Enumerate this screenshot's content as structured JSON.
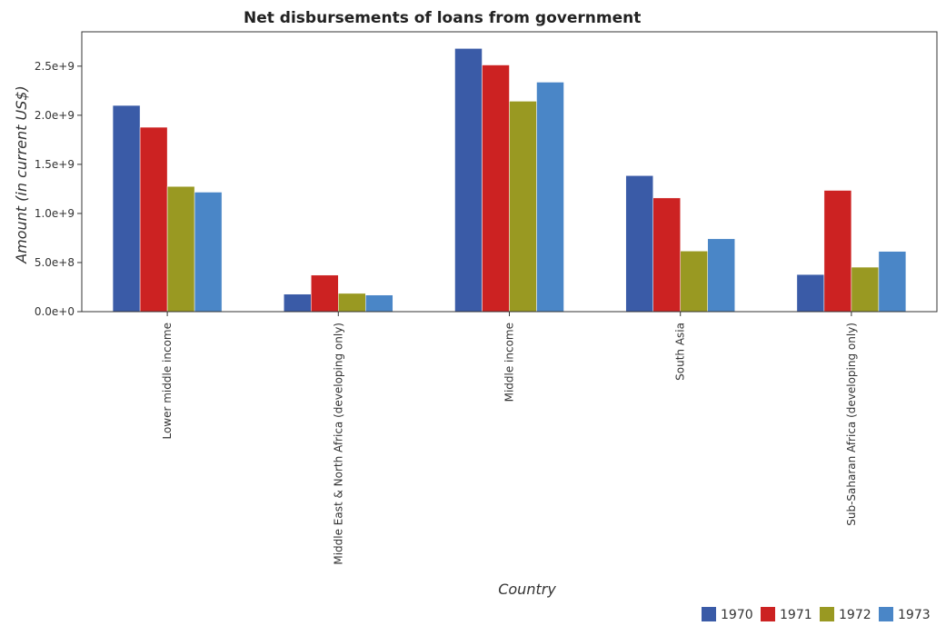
{
  "chart_data": {
    "type": "bar",
    "title": "Net disbursements of loans from government",
    "xlabel": "Country",
    "ylabel": "Amount (in current US$)",
    "ylim": [
      0,
      2850000000
    ],
    "yticks": [
      0,
      500000000,
      1000000000,
      1500000000,
      2000000000,
      2500000000
    ],
    "ytick_labels": [
      "0.0e+0",
      "5.0e+8",
      "1.0e+9",
      "1.5e+9",
      "2.0e+9",
      "2.5e+9"
    ],
    "categories": [
      "Lower middle income",
      "Middle East & North Africa (developing only)",
      "Middle income",
      "South Asia",
      "Sub-Saharan Africa (developing only)"
    ],
    "series": [
      {
        "name": "1970",
        "color": "#3a5ba7",
        "values": [
          2100000000,
          178000000,
          2680000000,
          1385000000,
          378000000
        ]
      },
      {
        "name": "1971",
        "color": "#cc2222",
        "values": [
          1878000000,
          372000000,
          2512000000,
          1158000000,
          1235000000
        ]
      },
      {
        "name": "1972",
        "color": "#999922",
        "values": [
          1275000000,
          186000000,
          2143000000,
          617000000,
          453000000
        ]
      },
      {
        "name": "1973",
        "color": "#4a86c7",
        "values": [
          1217000000,
          169000000,
          2337000000,
          742000000,
          614000000
        ]
      }
    ],
    "grid": false,
    "legend_position": "bottom-right"
  }
}
